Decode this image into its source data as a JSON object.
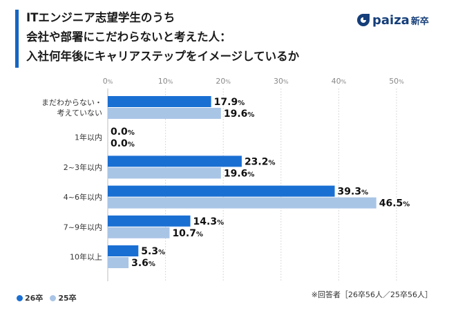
{
  "header": {
    "title_lines": [
      "ITエンジニア志望学生のうち",
      "会社や部署にこだわらないと考えた人：",
      "入社何年後にキャリアステップをイメージしているか"
    ],
    "logo_text": "paiza",
    "logo_sub": "新卒"
  },
  "colors": {
    "accent": "#1565c0",
    "series_26": "#1a6fd2",
    "series_25": "#a9c5e6",
    "gridline": "#d9d9d9",
    "logo": "#153e7a"
  },
  "note": "※回答者［26卒56人／25卒56人］",
  "chart_data": {
    "type": "bar",
    "orientation": "horizontal",
    "title": "入社何年後にキャリアステップをイメージしているか",
    "categories": [
      [
        "まだわからない・",
        "考えていない"
      ],
      [
        "1年以内"
      ],
      [
        "2~3年以内"
      ],
      [
        "4~6年以内"
      ],
      [
        "7~9年以内"
      ],
      [
        "10年以上"
      ]
    ],
    "series": [
      {
        "name": "26卒",
        "values": [
          17.9,
          0.0,
          23.2,
          39.3,
          14.3,
          5.3
        ]
      },
      {
        "name": "25卒",
        "values": [
          19.6,
          0.0,
          19.6,
          46.5,
          10.7,
          3.6
        ]
      }
    ],
    "xlim": [
      0,
      50
    ],
    "xticks": [
      0,
      10,
      20,
      30,
      40,
      50
    ],
    "unit": "%",
    "value_labels": true,
    "gridlines": "dashed-vertical",
    "legend": "bottom-left"
  }
}
